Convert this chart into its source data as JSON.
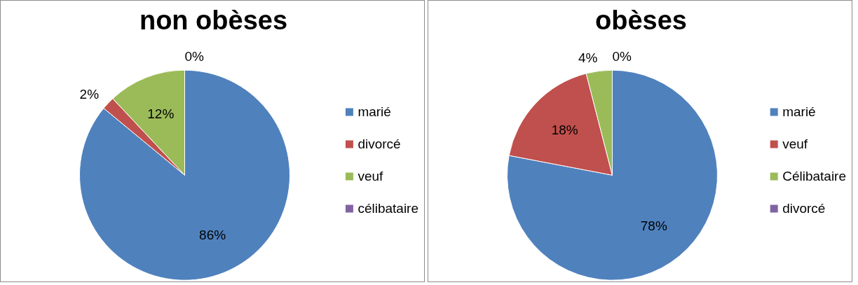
{
  "chart_data": [
    {
      "type": "pie",
      "title": "non obèses",
      "categories": [
        "marié",
        "divorcé",
        "veuf",
        "célibataire"
      ],
      "values": [
        86,
        2,
        12,
        0
      ],
      "colors": [
        "#4f81bd",
        "#c0504d",
        "#9bbb59",
        "#8064a2"
      ],
      "value_labels": [
        "86%",
        "2%",
        "12%",
        "0%"
      ],
      "legend": "right"
    },
    {
      "type": "pie",
      "title": "obèses",
      "categories": [
        "marié",
        "veuf",
        "Célibataire",
        "divorcé"
      ],
      "values": [
        78,
        18,
        4,
        0
      ],
      "colors": [
        "#4f81bd",
        "#c0504d",
        "#9bbb59",
        "#8064a2"
      ],
      "value_labels": [
        "78%",
        "18%",
        "4%",
        "0%"
      ],
      "legend": "right"
    }
  ]
}
